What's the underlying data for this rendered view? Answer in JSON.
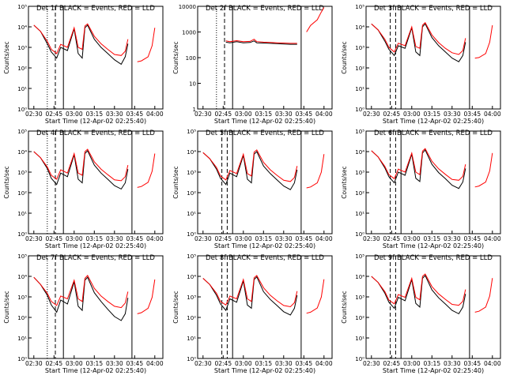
{
  "figure": {
    "xlabel": "Start Time (12-Apr-02 02:25:40)",
    "ylabel": "Counts/sec",
    "legend_text": "BLACK = Events, RED = LLD",
    "x_ticks": [
      "02:30",
      "02:45",
      "03:00",
      "03:15",
      "03:30",
      "03:45",
      "04:00"
    ],
    "colors": {
      "events": "#000000",
      "lld": "#ff0000",
      "axes": "#000000",
      "background": "#ffffff"
    }
  },
  "chart_data": [
    {
      "type": "line",
      "title": "Det 1f BLACK = Events, RED = LLD",
      "xlabel": "Start Time (12-Apr-02 02:25:40)",
      "ylabel": "Counts/sec",
      "yscale": "log",
      "ylim": [
        1,
        100000
      ],
      "y_ticks": [
        "10⁰",
        "10¹",
        "10²",
        "10³",
        "10⁴",
        "10⁵"
      ],
      "x": [
        "02:30",
        "02:35",
        "02:40",
        "02:43",
        "02:47",
        "02:50",
        "02:55",
        "03:00",
        "03:03",
        "03:06",
        "03:08",
        "03:10",
        "03:15",
        "03:20",
        "03:25",
        "03:30",
        "03:35",
        "03:38",
        "03:40"
      ],
      "series": [
        {
          "name": "Events",
          "values": [
            12000,
            6000,
            1500,
            600,
            300,
            1000,
            700,
            8000,
            500,
            300,
            9000,
            12000,
            2500,
            1000,
            500,
            250,
            150,
            350,
            1500
          ]
        },
        {
          "name": "LLD",
          "values": [
            12000,
            6000,
            2000,
            800,
            500,
            1400,
            1000,
            9000,
            1000,
            800,
            11000,
            14000,
            3500,
            1500,
            800,
            450,
            400,
            650,
            2500
          ]
        }
      ],
      "second_segment_x": [
        "03:47",
        "03:50",
        "03:55",
        "03:58",
        "04:00"
      ],
      "second_segment": {
        "Events": [
          null,
          null,
          null,
          null,
          null
        ],
        "LLD": [
          200,
          220,
          350,
          1200,
          9000
        ]
      },
      "marker_lines": {
        "dotted": [
          "02:40"
        ],
        "dashed": [
          "02:46"
        ],
        "solid": [
          "02:52",
          "03:43"
        ]
      }
    },
    {
      "type": "line",
      "title": "Det 2f BLACK = Events, RED = LLD",
      "xlabel": "Start Time (12-Apr-02 02:25:40)",
      "ylabel": "Counts/sec",
      "yscale": "log",
      "ylim": [
        1,
        10000
      ],
      "y_ticks": [
        "1",
        "10",
        "100",
        "1000",
        "10000"
      ],
      "x": [
        "02:47",
        "02:50",
        "02:55",
        "03:00",
        "03:05",
        "03:08",
        "03:10",
        "03:15",
        "03:20",
        "03:25",
        "03:30",
        "03:35",
        "03:40"
      ],
      "series": [
        {
          "name": "Events",
          "values": [
            400,
            380,
            420,
            380,
            390,
            450,
            380,
            370,
            360,
            350,
            340,
            330,
            330
          ]
        },
        {
          "name": "LLD",
          "values": [
            450,
            420,
            460,
            420,
            430,
            520,
            420,
            400,
            390,
            380,
            370,
            360,
            360
          ]
        }
      ],
      "second_segment_x": [
        "03:47",
        "03:50",
        "03:55",
        "03:58",
        "04:00"
      ],
      "second_segment": {
        "Events": [
          null,
          null,
          null,
          null,
          null
        ],
        "LLD": [
          1000,
          1800,
          3000,
          6000,
          9000
        ]
      },
      "marker_lines": {
        "dotted": [
          "02:40"
        ],
        "dashed": [
          "02:46"
        ],
        "solid": [
          "02:52",
          "03:43"
        ]
      }
    },
    {
      "type": "line",
      "title": "Det 3f BLACK = Events, RED = LLD",
      "xlabel": "Start Time (12-Apr-02 02:25:40)",
      "ylabel": "Counts/sec",
      "yscale": "log",
      "ylim": [
        1,
        100000
      ],
      "y_ticks": [
        "10⁰",
        "10¹",
        "10²",
        "10³",
        "10⁴",
        "10⁵"
      ],
      "x": [
        "02:30",
        "02:35",
        "02:40",
        "02:43",
        "02:47",
        "02:50",
        "02:55",
        "03:00",
        "03:03",
        "03:06",
        "03:08",
        "03:10",
        "03:15",
        "03:20",
        "03:25",
        "03:30",
        "03:35",
        "03:38",
        "03:40"
      ],
      "series": [
        {
          "name": "Events",
          "values": [
            14000,
            7000,
            2000,
            800,
            400,
            1200,
            900,
            9000,
            600,
            400,
            10000,
            14000,
            3000,
            1200,
            600,
            300,
            200,
            400,
            1800
          ]
        },
        {
          "name": "LLD",
          "values": [
            14000,
            7000,
            2500,
            1000,
            600,
            1600,
            1200,
            10000,
            1100,
            900,
            12000,
            16000,
            4000,
            1700,
            900,
            550,
            450,
            700,
            2800
          ]
        }
      ],
      "second_segment_x": [
        "03:47",
        "03:50",
        "03:55",
        "03:58",
        "04:00"
      ],
      "second_segment": {
        "Events": [
          null,
          null,
          null,
          null,
          null
        ],
        "LLD": [
          300,
          320,
          500,
          1800,
          12000
        ]
      },
      "marker_lines": {
        "dotted": [],
        "dashed": [
          "02:44",
          "02:48"
        ],
        "solid": [
          "02:52",
          "03:43"
        ]
      }
    },
    {
      "type": "line",
      "title": "Det 4f BLACK = Events, RED = LLD",
      "xlabel": "Start Time (12-Apr-02 02:25:40)",
      "ylabel": "Counts/sec",
      "yscale": "log",
      "ylim": [
        1,
        100000
      ],
      "y_ticks": [
        "10⁰",
        "10¹",
        "10²",
        "10³",
        "10⁴",
        "10⁵"
      ],
      "x": [
        "02:30",
        "02:35",
        "02:40",
        "02:43",
        "02:47",
        "02:50",
        "02:55",
        "03:00",
        "03:03",
        "03:06",
        "03:08",
        "03:10",
        "03:15",
        "03:20",
        "03:25",
        "03:30",
        "03:35",
        "03:38",
        "03:40"
      ],
      "series": [
        {
          "name": "Events",
          "values": [
            10000,
            5000,
            1500,
            500,
            250,
            900,
            600,
            7000,
            450,
            300,
            8000,
            11000,
            2200,
            900,
            450,
            220,
            150,
            300,
            1400
          ]
        },
        {
          "name": "LLD",
          "values": [
            10000,
            5000,
            1800,
            700,
            450,
            1300,
            900,
            8000,
            900,
            700,
            10000,
            13000,
            3200,
            1400,
            750,
            420,
            380,
            600,
            2200
          ]
        }
      ],
      "second_segment_x": [
        "03:47",
        "03:50",
        "03:55",
        "03:58",
        "04:00"
      ],
      "second_segment": {
        "Events": [
          null,
          null,
          null,
          null,
          null
        ],
        "LLD": [
          180,
          200,
          320,
          1100,
          8000
        ]
      },
      "marker_lines": {
        "dotted": [
          "02:40"
        ],
        "dashed": [
          "02:46"
        ],
        "solid": [
          "02:52",
          "03:43"
        ]
      }
    },
    {
      "type": "line",
      "title": "Det 5f BLACK = Events, RED = LLD",
      "xlabel": "Start Time (12-Apr-02 02:25:40)",
      "ylabel": "Counts/sec",
      "yscale": "log",
      "ylim": [
        1,
        100000
      ],
      "y_ticks": [
        "10⁰",
        "10¹",
        "10²",
        "10³",
        "10⁴",
        "10⁵"
      ],
      "x": [
        "02:30",
        "02:35",
        "02:40",
        "02:43",
        "02:47",
        "02:50",
        "02:55",
        "03:00",
        "03:03",
        "03:06",
        "03:08",
        "03:10",
        "03:15",
        "03:20",
        "03:25",
        "03:30",
        "03:35",
        "03:38",
        "03:40"
      ],
      "series": [
        {
          "name": "Events",
          "values": [
            9000,
            4500,
            1400,
            500,
            250,
            900,
            600,
            6500,
            450,
            300,
            7500,
            10000,
            2000,
            850,
            420,
            210,
            140,
            300,
            1300
          ]
        },
        {
          "name": "LLD",
          "values": [
            9000,
            4500,
            1700,
            650,
            420,
            1200,
            850,
            7500,
            850,
            650,
            9500,
            12000,
            3000,
            1300,
            700,
            400,
            350,
            550,
            2000
          ]
        }
      ],
      "second_segment_x": [
        "03:47",
        "03:50",
        "03:55",
        "03:58",
        "04:00"
      ],
      "second_segment": {
        "Events": [
          null,
          null,
          null,
          null,
          null
        ],
        "LLD": [
          170,
          190,
          300,
          1000,
          7500
        ]
      },
      "marker_lines": {
        "dotted": [],
        "dashed": [
          "02:44",
          "02:48"
        ],
        "solid": [
          "02:52",
          "03:43"
        ]
      }
    },
    {
      "type": "line",
      "title": "Det 6f BLACK = Events, RED = LLD",
      "xlabel": "Start Time (12-Apr-02 02:25:40)",
      "ylabel": "Counts/sec",
      "yscale": "log",
      "ylim": [
        1,
        100000
      ],
      "y_ticks": [
        "10⁰",
        "10¹",
        "10²",
        "10³",
        "10⁴",
        "10⁵"
      ],
      "x": [
        "02:30",
        "02:35",
        "02:40",
        "02:43",
        "02:47",
        "02:50",
        "02:55",
        "03:00",
        "03:03",
        "03:06",
        "03:08",
        "03:10",
        "03:15",
        "03:20",
        "03:25",
        "03:30",
        "03:35",
        "03:38",
        "03:40"
      ],
      "series": [
        {
          "name": "Events",
          "values": [
            11000,
            5500,
            1600,
            600,
            300,
            1000,
            700,
            7500,
            500,
            350,
            8500,
            12000,
            2400,
            950,
            480,
            230,
            160,
            330,
            1500
          ]
        },
        {
          "name": "LLD",
          "values": [
            11000,
            5500,
            1900,
            750,
            480,
            1400,
            1000,
            8500,
            1000,
            750,
            10500,
            14000,
            3400,
            1450,
            780,
            440,
            400,
            620,
            2400
          ]
        }
      ],
      "second_segment_x": [
        "03:47",
        "03:50",
        "03:55",
        "03:58",
        "04:00"
      ],
      "second_segment": {
        "Events": [
          null,
          null,
          null,
          null,
          null
        ],
        "LLD": [
          190,
          210,
          330,
          1150,
          8500
        ]
      },
      "marker_lines": {
        "dotted": [],
        "dashed": [
          "02:44",
          "02:48"
        ],
        "solid": [
          "02:52",
          "03:43"
        ]
      }
    },
    {
      "type": "line",
      "title": "Det 7f BLACK = Events, RED = LLD",
      "xlabel": "Start Time (12-Apr-02 02:25:40)",
      "ylabel": "Counts/sec",
      "yscale": "log",
      "ylim": [
        1,
        100000
      ],
      "y_ticks": [
        "10⁰",
        "10¹",
        "10²",
        "10³",
        "10⁴",
        "10⁵"
      ],
      "x": [
        "02:30",
        "02:35",
        "02:40",
        "02:43",
        "02:47",
        "02:50",
        "02:55",
        "03:00",
        "03:03",
        "03:06",
        "03:08",
        "03:10",
        "03:15",
        "03:20",
        "03:25",
        "03:30",
        "03:35",
        "03:38",
        "03:40"
      ],
      "series": [
        {
          "name": "Events",
          "values": [
            9000,
            4000,
            1200,
            400,
            180,
            700,
            450,
            5500,
            350,
            220,
            6500,
            9000,
            1600,
            600,
            250,
            110,
            70,
            150,
            900
          ]
        },
        {
          "name": "LLD",
          "values": [
            9000,
            4000,
            1500,
            600,
            380,
            1100,
            800,
            6500,
            800,
            600,
            8000,
            11000,
            2600,
            1100,
            600,
            350,
            300,
            500,
            1800
          ]
        }
      ],
      "second_segment_x": [
        "03:47",
        "03:50",
        "03:55",
        "03:58",
        "04:00"
      ],
      "second_segment": {
        "Events": [
          null,
          null,
          null,
          null,
          null
        ],
        "LLD": [
          150,
          170,
          280,
          950,
          7000
        ]
      },
      "marker_lines": {
        "dotted": [
          "02:40"
        ],
        "dashed": [
          "02:46"
        ],
        "solid": [
          "02:52",
          "03:43"
        ]
      }
    },
    {
      "type": "line",
      "title": "Det 8f BLACK = Events, RED = LLD",
      "xlabel": "Start Time (12-Apr-02 02:25:40)",
      "ylabel": "Counts/sec",
      "yscale": "log",
      "ylim": [
        1,
        100000
      ],
      "y_ticks": [
        "10⁰",
        "10¹",
        "10²",
        "10³",
        "10⁴",
        "10⁵"
      ],
      "x": [
        "02:30",
        "02:35",
        "02:40",
        "02:43",
        "02:47",
        "02:50",
        "02:55",
        "03:00",
        "03:03",
        "03:06",
        "03:08",
        "03:10",
        "03:15",
        "03:20",
        "03:25",
        "03:30",
        "03:35",
        "03:38",
        "03:40"
      ],
      "series": [
        {
          "name": "Events",
          "values": [
            8000,
            4000,
            1200,
            450,
            220,
            800,
            550,
            6000,
            400,
            280,
            7000,
            9500,
            1800,
            750,
            380,
            190,
            130,
            280,
            1200
          ]
        },
        {
          "name": "LLD",
          "values": [
            8000,
            4000,
            1500,
            600,
            400,
            1100,
            800,
            7000,
            800,
            600,
            8500,
            11000,
            2800,
            1200,
            650,
            380,
            330,
            520,
            1900
          ]
        }
      ],
      "second_segment_x": [
        "03:47",
        "03:50",
        "03:55",
        "03:58",
        "04:00"
      ],
      "second_segment": {
        "Events": [
          null,
          null,
          null,
          null,
          null
        ],
        "LLD": [
          160,
          180,
          290,
          980,
          7200
        ]
      },
      "marker_lines": {
        "dotted": [],
        "dashed": [
          "02:44",
          "02:48"
        ],
        "solid": [
          "02:52",
          "03:43"
        ]
      }
    },
    {
      "type": "line",
      "title": "Det 9f BLACK = Events, RED = LLD",
      "xlabel": "Start Time (12-Apr-02 02:25:40)",
      "ylabel": "Counts/sec",
      "yscale": "log",
      "ylim": [
        1,
        100000
      ],
      "y_ticks": [
        "10⁰",
        "10¹",
        "10²",
        "10³",
        "10⁴",
        "10⁵"
      ],
      "x": [
        "02:30",
        "02:35",
        "02:40",
        "02:43",
        "02:47",
        "02:50",
        "02:55",
        "03:00",
        "03:03",
        "03:06",
        "03:08",
        "03:10",
        "03:15",
        "03:20",
        "03:25",
        "03:30",
        "03:35",
        "03:38",
        "03:40"
      ],
      "series": [
        {
          "name": "Events",
          "values": [
            10000,
            5000,
            1500,
            550,
            280,
            950,
            650,
            7000,
            480,
            320,
            8000,
            11000,
            2200,
            900,
            450,
            220,
            150,
            320,
            1400
          ]
        },
        {
          "name": "LLD",
          "values": [
            10000,
            5000,
            1800,
            700,
            460,
            1300,
            950,
            8000,
            950,
            720,
            10000,
            13000,
            3200,
            1400,
            760,
            430,
            390,
            610,
            2300
          ]
        }
      ],
      "second_segment_x": [
        "03:47",
        "03:50",
        "03:55",
        "03:58",
        "04:00"
      ],
      "second_segment": {
        "Events": [
          null,
          null,
          null,
          null,
          null
        ],
        "LLD": [
          180,
          200,
          320,
          1100,
          8200
        ]
      },
      "marker_lines": {
        "dotted": [],
        "dashed": [
          "02:44",
          "02:48"
        ],
        "solid": [
          "02:52",
          "03:43"
        ]
      }
    }
  ]
}
